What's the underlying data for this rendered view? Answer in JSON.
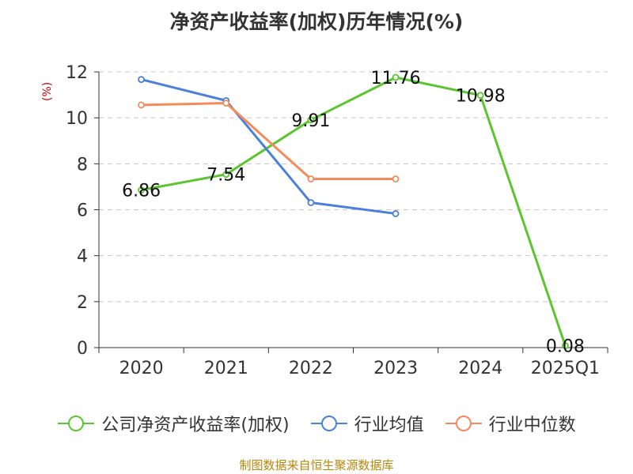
{
  "chart_data": {
    "type": "line",
    "title": "净资产收益率(加权)历年情况(%)",
    "ylabel": "(%)",
    "ylim": [
      0,
      12
    ],
    "yticks": [
      0,
      2,
      4,
      6,
      8,
      10,
      12
    ],
    "categories": [
      "2020",
      "2021",
      "2022",
      "2023",
      "2024",
      "2025Q1"
    ],
    "grid": true,
    "legend_position": "bottom",
    "series": [
      {
        "name": "公司净资产收益率(加权)",
        "color": "#5bc52f",
        "values": [
          6.86,
          7.54,
          9.91,
          11.76,
          10.98,
          0.08
        ],
        "labels": [
          "6.86",
          "7.54",
          "9.91",
          "11.76",
          "10.98",
          "0.08"
        ]
      },
      {
        "name": "行业均值",
        "color": "#4a7fdc",
        "values": [
          11.67,
          10.75,
          6.31,
          5.83,
          null,
          null
        ]
      },
      {
        "name": "行业中位数",
        "color": "#f58b5c",
        "values": [
          10.56,
          10.64,
          7.34,
          7.34,
          null,
          null
        ]
      }
    ]
  },
  "source_note": "制图数据来自恒生聚源数据库"
}
